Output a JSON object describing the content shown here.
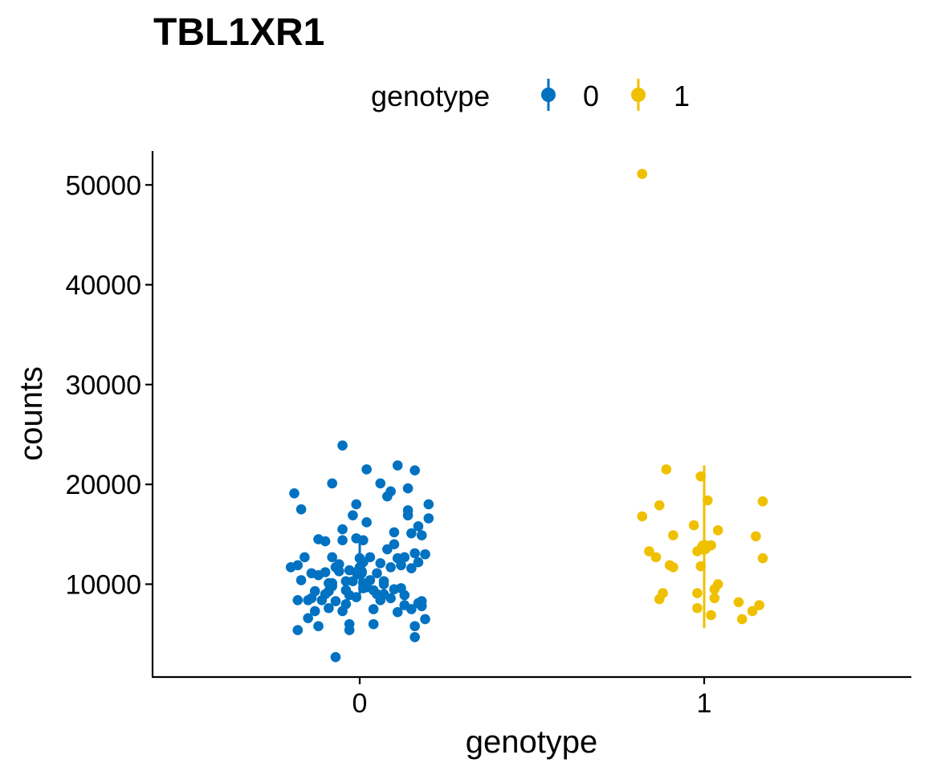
{
  "chart_data": {
    "type": "scatter",
    "title": "TBL1XR1",
    "xlabel": "genotype",
    "ylabel": "counts",
    "legend": {
      "title": "genotype",
      "position": "top"
    },
    "categories": [
      "0",
      "1"
    ],
    "ylim": [
      700,
      53400
    ],
    "yticks": [
      10000,
      20000,
      30000,
      40000,
      50000
    ],
    "yticklabels": [
      "10000",
      "20000",
      "30000",
      "40000",
      "50000"
    ],
    "grid": false,
    "series": [
      {
        "name": "0",
        "color": "#0072C1",
        "summary": {
          "mean": 11200,
          "low": 8400,
          "high": 14400
        },
        "points": [
          [
            -0.19,
            19100
          ],
          [
            -0.17,
            17500
          ],
          [
            -0.12,
            14500
          ],
          [
            -0.16,
            12700
          ],
          [
            -0.18,
            11900
          ],
          [
            -0.2,
            11700
          ],
          [
            -0.14,
            11100
          ],
          [
            -0.12,
            10900
          ],
          [
            -0.17,
            10400
          ],
          [
            -0.13,
            9300
          ],
          [
            -0.14,
            8600
          ],
          [
            -0.18,
            8400
          ],
          [
            -0.11,
            8400
          ],
          [
            -0.15,
            8400
          ],
          [
            -0.13,
            7300
          ],
          [
            -0.15,
            6600
          ],
          [
            -0.18,
            5400
          ],
          [
            -0.12,
            5800
          ],
          [
            -0.1,
            14300
          ],
          [
            -0.1,
            11200
          ],
          [
            -0.09,
            10100
          ],
          [
            -0.1,
            9000
          ],
          [
            -0.09,
            7600
          ],
          [
            -0.07,
            11700
          ],
          [
            -0.08,
            9800
          ],
          [
            -0.07,
            8300
          ],
          [
            -0.05,
            7300
          ],
          [
            -0.08,
            10100
          ],
          [
            -0.06,
            12000
          ],
          [
            -0.08,
            12700
          ],
          [
            -0.06,
            11300
          ],
          [
            -0.09,
            9300
          ],
          [
            -0.08,
            20100
          ],
          [
            -0.05,
            14400
          ],
          [
            -0.04,
            10300
          ],
          [
            -0.04,
            9400
          ],
          [
            -0.03,
            11400
          ],
          [
            -0.02,
            10300
          ],
          [
            -0.05,
            15500
          ],
          [
            -0.03,
            8900
          ],
          [
            -0.04,
            8000
          ],
          [
            -0.03,
            6000
          ],
          [
            -0.03,
            5400
          ],
          [
            -0.02,
            16900
          ],
          [
            -0.01,
            18000
          ],
          [
            -0.01,
            14600
          ],
          [
            0.0,
            12600
          ],
          [
            0.0,
            11700
          ],
          [
            0.01,
            10100
          ],
          [
            0.02,
            9700
          ],
          [
            -0.01,
            8700
          ],
          [
            0.01,
            12200
          ],
          [
            0.0,
            11000
          ],
          [
            0.01,
            9600
          ],
          [
            0.01,
            14400
          ],
          [
            0.02,
            16200
          ],
          [
            0.03,
            12700
          ],
          [
            0.03,
            10400
          ],
          [
            0.04,
            9400
          ],
          [
            0.04,
            7500
          ],
          [
            0.05,
            11100
          ],
          [
            0.05,
            9000
          ],
          [
            0.06,
            20100
          ],
          [
            -0.05,
            23900
          ],
          [
            -0.07,
            2700
          ],
          [
            0.02,
            21500
          ],
          [
            0.04,
            6000
          ],
          [
            0.06,
            12100
          ],
          [
            0.07,
            10000
          ],
          [
            0.07,
            9000
          ],
          [
            0.08,
            18800
          ],
          [
            0.09,
            19300
          ],
          [
            0.08,
            13500
          ],
          [
            0.09,
            11700
          ],
          [
            0.1,
            15200
          ],
          [
            0.1,
            14000
          ],
          [
            0.11,
            21900
          ],
          [
            0.11,
            12600
          ],
          [
            0.1,
            9500
          ],
          [
            0.12,
            9600
          ],
          [
            0.13,
            8900
          ],
          [
            0.13,
            7900
          ],
          [
            0.12,
            11900
          ],
          [
            0.14,
            19600
          ],
          [
            0.14,
            16900
          ],
          [
            0.15,
            15100
          ],
          [
            0.16,
            13100
          ],
          [
            0.14,
            17400
          ],
          [
            0.15,
            11600
          ],
          [
            0.16,
            21400
          ],
          [
            0.17,
            15800
          ],
          [
            0.17,
            12200
          ],
          [
            0.18,
            14900
          ],
          [
            0.19,
            13000
          ],
          [
            0.18,
            8300
          ],
          [
            0.18,
            7800
          ],
          [
            0.17,
            8100
          ],
          [
            0.15,
            7500
          ],
          [
            0.16,
            5800
          ],
          [
            0.16,
            4700
          ],
          [
            0.2,
            18000
          ],
          [
            0.2,
            16600
          ],
          [
            0.19,
            6500
          ],
          [
            0.13,
            12700
          ],
          [
            0.11,
            7200
          ],
          [
            0.09,
            8600
          ],
          [
            0.07,
            10300
          ],
          [
            0.06,
            8400
          ],
          [
            -0.01,
            11200
          ]
        ]
      },
      {
        "name": "1",
        "color": "#EFC000",
        "summary": {
          "mean": 13700,
          "low": 5600,
          "high": 21900
        },
        "points": [
          [
            -0.18,
            16800
          ],
          [
            -0.16,
            13300
          ],
          [
            -0.14,
            12700
          ],
          [
            -0.13,
            17900
          ],
          [
            -0.13,
            8500
          ],
          [
            -0.12,
            9100
          ],
          [
            -0.11,
            21500
          ],
          [
            -0.1,
            11900
          ],
          [
            -0.09,
            14900
          ],
          [
            -0.09,
            11700
          ],
          [
            -0.03,
            15900
          ],
          [
            -0.02,
            13300
          ],
          [
            -0.02,
            9100
          ],
          [
            -0.02,
            7600
          ],
          [
            -0.01,
            20800
          ],
          [
            -0.01,
            11800
          ],
          [
            0.01,
            18400
          ],
          [
            0.02,
            13900
          ],
          [
            0.02,
            6900
          ],
          [
            0.03,
            9500
          ],
          [
            0.03,
            8600
          ],
          [
            0.04,
            10000
          ],
          [
            0.04,
            15400
          ],
          [
            0.1,
            8200
          ],
          [
            0.11,
            6500
          ],
          [
            0.14,
            7300
          ],
          [
            0.15,
            14800
          ],
          [
            0.16,
            7900
          ],
          [
            0.17,
            18300
          ],
          [
            0.17,
            12600
          ],
          [
            -0.18,
            51100
          ]
        ]
      }
    ]
  }
}
